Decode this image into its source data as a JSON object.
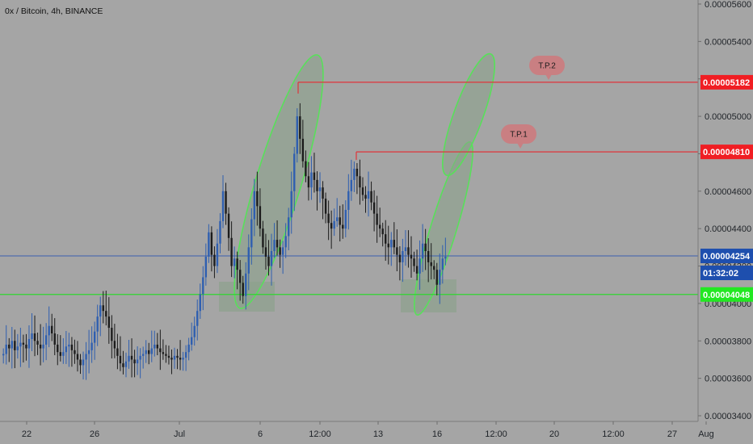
{
  "title": "0x / Bitcoin, 4h, BINANCE",
  "colors": {
    "background": "#a5a5a5",
    "up": "#2f5fb0",
    "down": "#1c1c1c",
    "tp_line": "#e0343a",
    "support_line": "#2fd62f",
    "price_line": "#3b5fb0",
    "zone_fill": "#8fa28f",
    "ellipse_stroke": "#58e05a",
    "ellipse_fill": "#8aa38a",
    "bubble": "#c97f82",
    "tag_red": "#f01e23",
    "tag_blue": "#1e4fae",
    "tag_green": "#22e822"
  },
  "chart_data": {
    "type": "candlestick",
    "symbol": "0x / Bitcoin",
    "interval": "4h",
    "exchange": "BINANCE",
    "ylim": [
      3.38e-05,
      5.62e-05
    ],
    "y_ticks": [
      "0.00005600",
      "0.00005400",
      "0.00005200",
      "0.00005000",
      "0.00004800",
      "0.00004600",
      "0.00004400",
      "0.00004200",
      "0.00004000",
      "0.00003800",
      "0.00003600",
      "0.00003400"
    ],
    "x_ticks": [
      "22",
      "26",
      "Jul",
      "6",
      "12:00",
      "13",
      "16",
      "12:00",
      "20",
      "12:00",
      "27",
      "Aug"
    ],
    "levels": [
      {
        "name": "tp1",
        "value": 4.81e-05,
        "label": "0.00004810"
      },
      {
        "name": "tp2",
        "value": 5.182e-05,
        "label": "0.00005182"
      },
      {
        "name": "support",
        "value": 4.048e-05,
        "label": "0.00004048"
      },
      {
        "name": "last",
        "value": 4.254e-05,
        "label": "0.00004254"
      }
    ],
    "countdown": "01:32:02",
    "annotations": [
      {
        "text": "T.P.1",
        "target": "tp1"
      },
      {
        "text": "T.P.2",
        "target": "tp2"
      }
    ],
    "close_series": [
      3.73e-05,
      3.78e-05,
      3.76e-05,
      3.8e-05,
      3.75e-05,
      3.77e-05,
      3.79e-05,
      3.78e-05,
      3.76e-05,
      3.81e-05,
      3.84e-05,
      3.8e-05,
      3.78e-05,
      3.76e-05,
      3.78e-05,
      3.83e-05,
      3.88e-05,
      3.84e-05,
      3.78e-05,
      3.74e-05,
      3.72e-05,
      3.74e-05,
      3.77e-05,
      3.78e-05,
      3.75e-05,
      3.73e-05,
      3.7e-05,
      3.67e-05,
      3.7e-05,
      3.73e-05,
      3.75e-05,
      3.79e-05,
      3.85e-05,
      3.93e-05,
      3.99e-05,
      3.96e-05,
      3.93e-05,
      3.87e-05,
      3.8e-05,
      3.76e-05,
      3.72e-05,
      3.68e-05,
      3.66e-05,
      3.69e-05,
      3.72e-05,
      3.7e-05,
      3.68e-05,
      3.7e-05,
      3.72e-05,
      3.73e-05,
      3.75e-05,
      3.73e-05,
      3.76e-05,
      3.78e-05,
      3.76e-05,
      3.74e-05,
      3.73e-05,
      3.72e-05,
      3.71e-05,
      3.7e-05,
      3.72e-05,
      3.71e-05,
      3.7e-05,
      3.71e-05,
      3.74e-05,
      3.78e-05,
      3.82e-05,
      3.88e-05,
      3.96e-05,
      4.05e-05,
      4.14e-05,
      4.25e-05,
      4.38e-05,
      4.26e-05,
      4.2e-05,
      4.32e-05,
      4.44e-05,
      4.6e-05,
      4.48e-05,
      4.35e-05,
      4.2e-05,
      4.24e-05,
      4.18e-05,
      4.11e-05,
      4.04e-05,
      4.16e-05,
      4.3e-05,
      4.45e-05,
      4.6e-05,
      4.52e-05,
      4.4e-05,
      4.3e-05,
      4.25e-05,
      4.2e-05,
      4.28e-05,
      4.34e-05,
      4.3e-05,
      4.26e-05,
      4.3e-05,
      4.36e-05,
      4.46e-05,
      4.6e-05,
      4.8e-05,
      5e-05,
      4.88e-05,
      4.76e-05,
      4.68e-05,
      4.62e-05,
      4.7e-05,
      4.66e-05,
      4.6e-05,
      4.62e-05,
      4.56e-05,
      4.48e-05,
      4.43e-05,
      4.4e-05,
      4.44e-05,
      4.46e-05,
      4.42e-05,
      4.4e-05,
      4.5e-05,
      4.6e-05,
      4.66e-05,
      4.72e-05,
      4.68e-05,
      4.62e-05,
      4.58e-05,
      4.56e-05,
      4.6e-05,
      4.54e-05,
      4.48e-05,
      4.42e-05,
      4.4e-05,
      4.37e-05,
      4.32e-05,
      4.3e-05,
      4.34e-05,
      4.3e-05,
      4.26e-05,
      4.22e-05,
      4.28e-05,
      4.3e-05,
      4.26e-05,
      4.24e-05,
      4.2e-05,
      4.16e-05,
      4.24e-05,
      4.32e-05,
      4.28e-05,
      4.22e-05,
      4.2e-05,
      4.18e-05,
      4.1e-05,
      4.18e-05,
      4.24e-05,
      4.25e-05
    ]
  }
}
